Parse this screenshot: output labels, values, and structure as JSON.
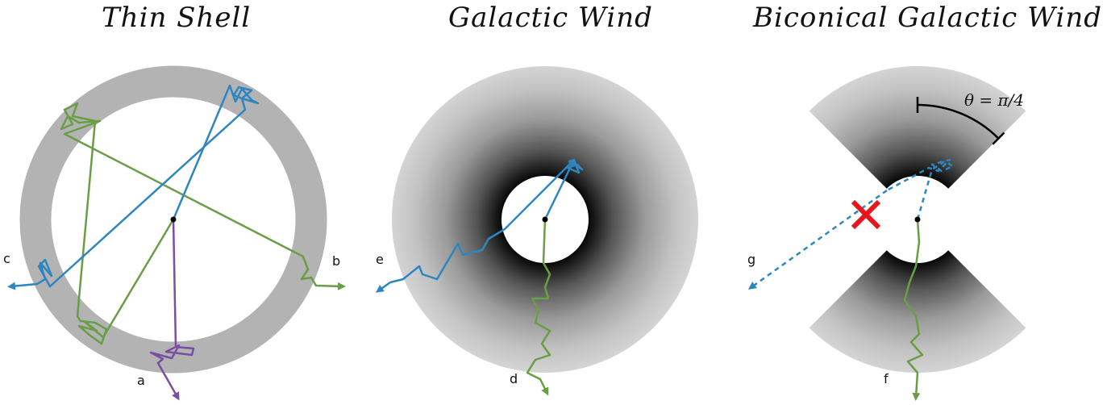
{
  "titles": {
    "thin_shell": "Thin Shell",
    "galactic_wind": "Galactic Wind",
    "biconical": "Biconical Galactic Wind"
  },
  "labels": {
    "a": "a",
    "b": "b",
    "c": "c",
    "d": "d",
    "e": "e",
    "f": "f",
    "g": "g"
  },
  "angle_label": "θ = π/4",
  "colors": {
    "blue": "#2e86c1",
    "green": "#6a9e46",
    "purple": "#7a4fa3",
    "shell": "#b3b3b3",
    "cross": "#e8161b"
  }
}
